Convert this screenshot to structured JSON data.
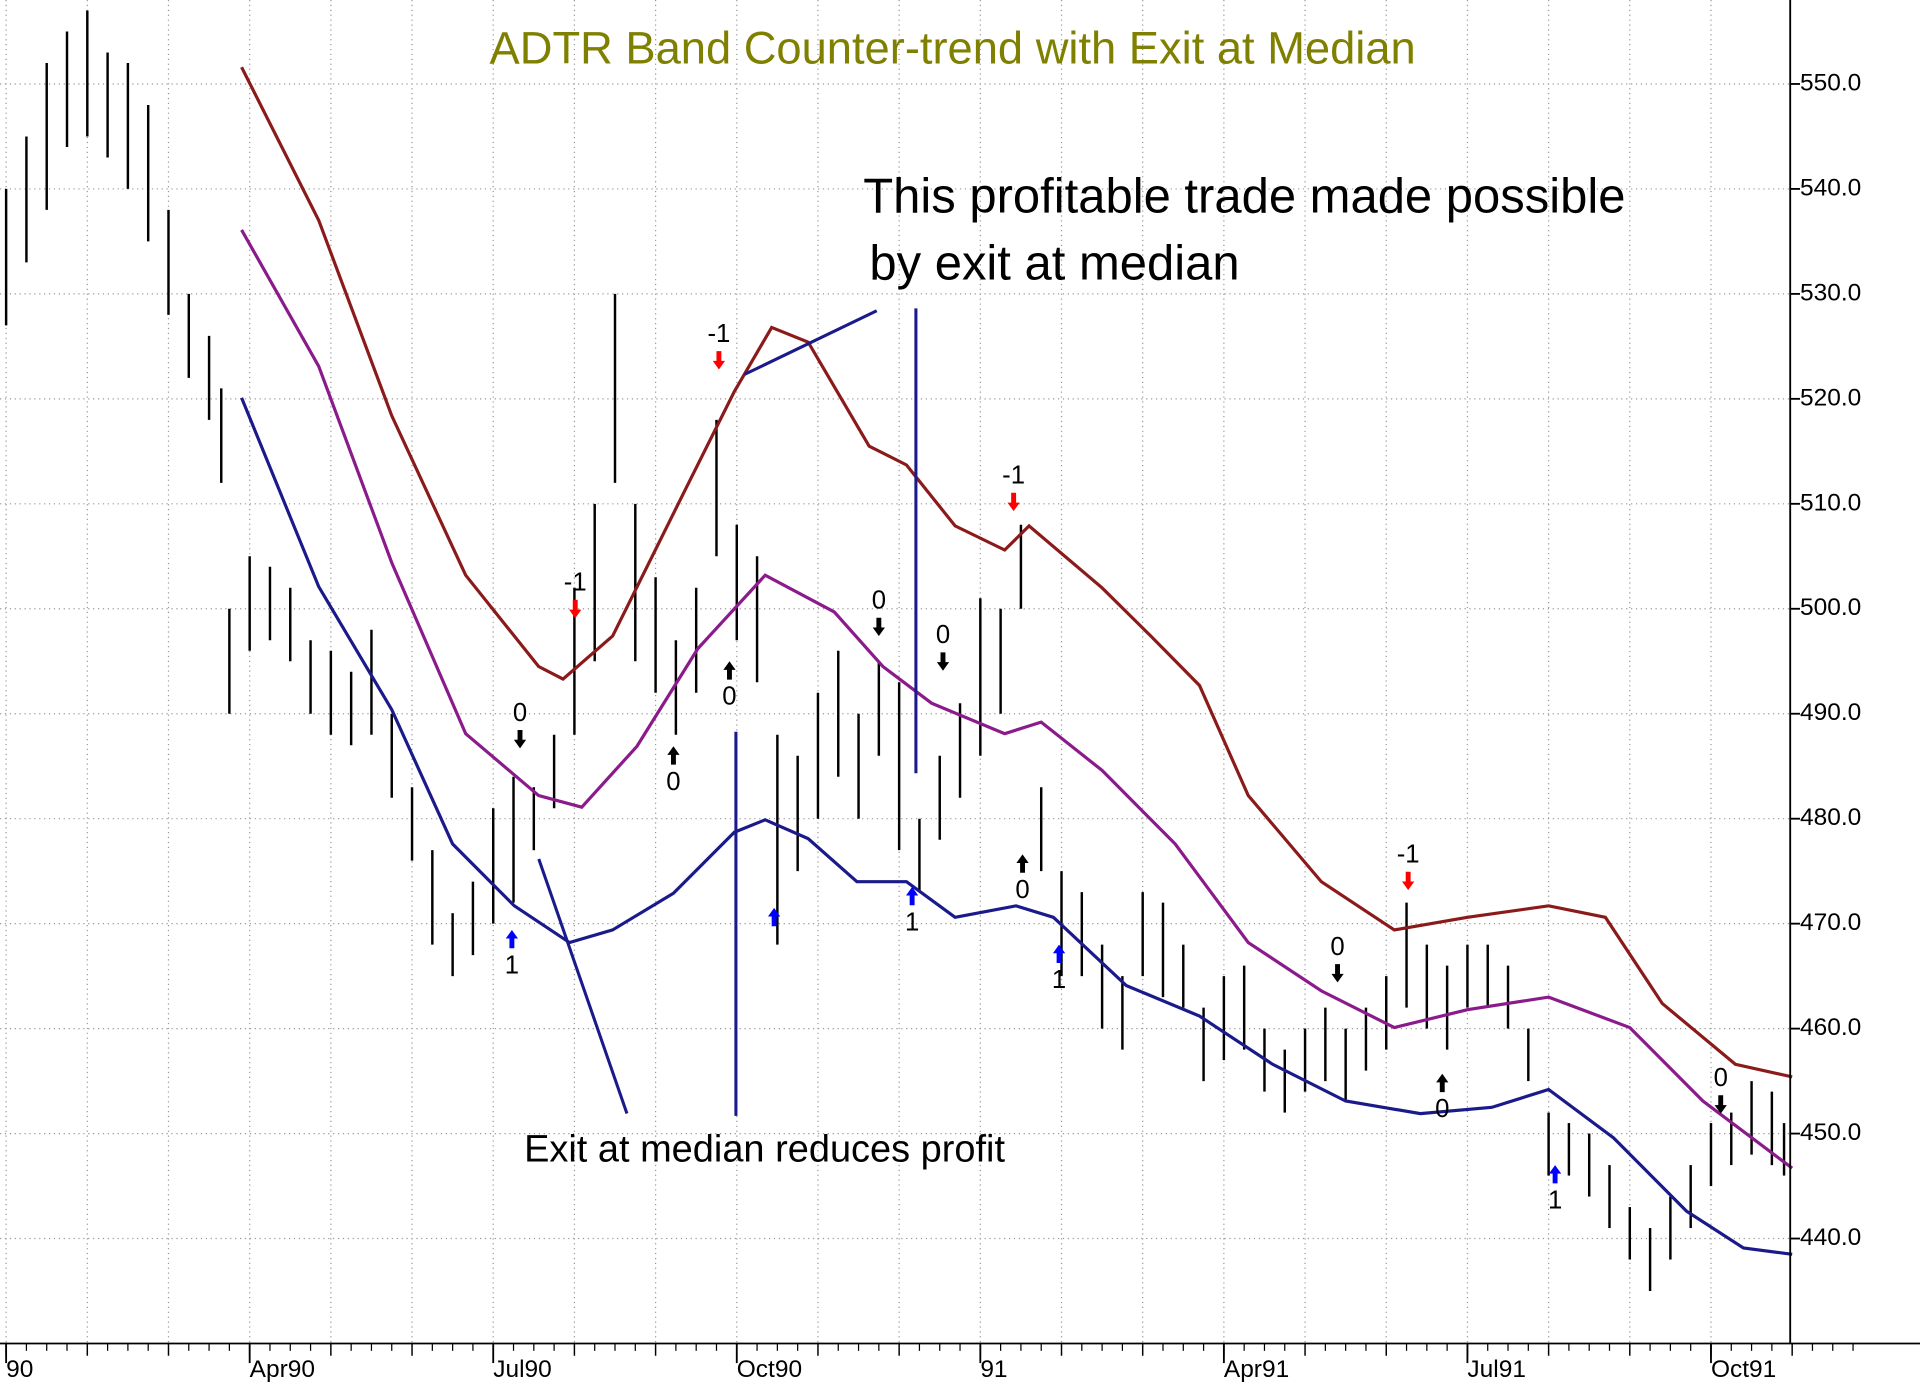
{
  "chart_data": {
    "type": "hilo",
    "title": "ADTR Band Counter-trend with Exit at Median",
    "title_color": "#808000",
    "annotations": [
      "This profitable trade made possible",
      "by exit at median",
      "Exit at median reduces profit"
    ],
    "xlim": [
      0,
      22
    ],
    "xticks": [
      {
        "value": 0,
        "label": "90"
      },
      {
        "value": 3,
        "label": "Apr90"
      },
      {
        "value": 6,
        "label": "Jul90"
      },
      {
        "value": 9,
        "label": "Oct90"
      },
      {
        "value": 12,
        "label": "91"
      },
      {
        "value": 15,
        "label": "Apr91"
      },
      {
        "value": 18,
        "label": "Jul91"
      },
      {
        "value": 21,
        "label": "Oct91"
      }
    ],
    "ylim": [
      430,
      558
    ],
    "yticks": [
      {
        "value": 440,
        "label": "440.0"
      },
      {
        "value": 450,
        "label": "450.0"
      },
      {
        "value": 460,
        "label": "460.0"
      },
      {
        "value": 470,
        "label": "470.0"
      },
      {
        "value": 480,
        "label": "480.0"
      },
      {
        "value": 490,
        "label": "490.0"
      },
      {
        "value": 500,
        "label": "500.0"
      },
      {
        "value": 510,
        "label": "510.0"
      },
      {
        "value": 520,
        "label": "520.0"
      },
      {
        "value": 530,
        "label": "530.0"
      },
      {
        "value": 540,
        "label": "540.0"
      },
      {
        "value": 550,
        "label": "550.0"
      }
    ],
    "y_axis_side": "right",
    "grid": true,
    "bar_color": "#000000",
    "x": [
      0,
      0.25,
      0.5,
      0.75,
      1,
      1.25,
      1.5,
      1.75,
      2,
      2.25,
      2.5,
      2.65,
      2.75,
      3,
      3.25,
      3.5,
      3.75,
      4,
      4.25,
      4.5,
      4.75,
      5,
      5.25,
      5.5,
      5.75,
      6,
      6.25,
      6.5,
      6.75,
      7,
      7.25,
      7.5,
      7.75,
      8,
      8.25,
      8.5,
      8.75,
      9,
      9.25,
      9.5,
      9.75,
      10,
      10.25,
      10.5,
      10.75,
      11,
      11.25,
      11.5,
      11.75,
      12,
      12.25,
      12.5,
      12.75,
      13,
      13.25,
      13.5,
      13.75,
      14,
      14.25,
      14.5,
      14.75,
      15,
      15.25,
      15.5,
      15.75,
      16,
      16.25,
      16.5,
      16.75,
      17,
      17.25,
      17.5,
      17.75,
      18,
      18.25,
      18.5,
      18.75,
      19,
      19.25,
      19.5,
      19.75,
      20,
      20.25,
      20.5,
      20.75,
      21,
      21.25,
      21.5,
      21.75,
      21.9
    ],
    "high": [
      540,
      545,
      552,
      555,
      557,
      553,
      552,
      548,
      538,
      530,
      526,
      521,
      500,
      505,
      504,
      502,
      497,
      496,
      494,
      498,
      490,
      483,
      477,
      471,
      474,
      481,
      484,
      483,
      488,
      502,
      510,
      530,
      510,
      503,
      497,
      502,
      518,
      508,
      505,
      488,
      486,
      492,
      496,
      490,
      495,
      493,
      480,
      486,
      491,
      501,
      500,
      508,
      483,
      475,
      473,
      468,
      465,
      473,
      472,
      468,
      462,
      465,
      466,
      460,
      458,
      460,
      462,
      460,
      462,
      465,
      472,
      468,
      466,
      468,
      468,
      466,
      460,
      452,
      451,
      450,
      447,
      443,
      441,
      444,
      447,
      451,
      452,
      455,
      454,
      451
    ],
    "low": [
      527,
      533,
      538,
      544,
      545,
      543,
      540,
      535,
      528,
      522,
      518,
      512,
      490,
      496,
      497,
      495,
      490,
      488,
      487,
      488,
      482,
      476,
      468,
      465,
      467,
      470,
      472,
      477,
      481,
      488,
      495,
      512,
      495,
      492,
      488,
      492,
      505,
      497,
      493,
      468,
      475,
      480,
      484,
      480,
      486,
      477,
      473,
      478,
      482,
      486,
      490,
      500,
      475,
      465,
      465,
      460,
      458,
      465,
      463,
      462,
      455,
      457,
      458,
      454,
      452,
      454,
      455,
      453,
      456,
      458,
      462,
      460,
      458,
      462,
      462,
      460,
      455,
      446,
      446,
      444,
      441,
      438,
      435,
      438,
      441,
      445,
      447,
      448,
      447,
      446
    ],
    "bands": [
      {
        "color": "#8b1a1a",
        "x": [
          2.9,
          3.85,
          4.75,
          5.66,
          6.56,
          6.86,
          7.47,
          8.37,
          8.97,
          9.43,
          9.88,
          10.63,
          11.09,
          11.69,
          12.3,
          12.6,
          13.5,
          14.1,
          14.7,
          15.3,
          16.2,
          17.1,
          18.0,
          19.0,
          19.7,
          20.4,
          21.3,
          22
        ],
        "values": [
          551.6,
          537,
          518.4,
          503.2,
          494.5,
          493.3,
          497.4,
          511.4,
          520.7,
          526.8,
          525.4,
          515.5,
          513.7,
          507.9,
          505.6,
          507.9,
          502,
          497.4,
          492.7,
          482.2,
          474,
          469.4,
          470.6,
          471.7,
          470.6,
          462.4,
          456.6,
          455.4
        ]
      },
      {
        "color": "#8b1a8b",
        "x": [
          2.9,
          3.85,
          4.75,
          5.66,
          6.56,
          7.09,
          7.77,
          8.52,
          9.35,
          10.2,
          10.8,
          11.4,
          12.3,
          12.75,
          13.5,
          14.4,
          15.3,
          16.2,
          17.1,
          18.0,
          19.0,
          20.0,
          20.9,
          22
        ],
        "values": [
          536.1,
          523.1,
          504.4,
          488.1,
          482.2,
          481.1,
          486.9,
          496.2,
          503.2,
          499.7,
          494.5,
          491,
          488.1,
          489.2,
          484.6,
          477.6,
          468.2,
          463.6,
          460.1,
          461.8,
          463,
          460.1,
          453.1,
          446.7
        ]
      },
      {
        "color": "#1a1a8b",
        "x": [
          2.9,
          3.85,
          4.75,
          5.5,
          6.26,
          6.94,
          7.47,
          8.22,
          8.97,
          9.35,
          9.88,
          10.48,
          11.09,
          11.69,
          12.44,
          12.9,
          13.8,
          14.7,
          15.6,
          16.5,
          17.42,
          18.3,
          19.0,
          19.8,
          20.7,
          21.4,
          22
        ],
        "values": [
          520.1,
          502.1,
          490.4,
          477.6,
          471.7,
          468.2,
          469.4,
          472.9,
          478.7,
          479.9,
          478.1,
          474,
          474,
          470.6,
          471.7,
          470.6,
          464.1,
          461.2,
          456.6,
          453.1,
          451.9,
          452.5,
          454.2,
          449.6,
          442.6,
          439.1,
          438.5
        ]
      }
    ],
    "signals": [
      {
        "x": 6.33,
        "value": 486.7,
        "label": "0",
        "direction": "down",
        "color": "#000000"
      },
      {
        "x": 6.23,
        "value": 469.4,
        "label": "1",
        "direction": "up",
        "color": "#0000ff"
      },
      {
        "x": 7.01,
        "value": 499.1,
        "label": "-1",
        "direction": "down",
        "color": "#ff0000"
      },
      {
        "x": 8.22,
        "value": 486.9,
        "label": "0",
        "direction": "up",
        "color": "#000000"
      },
      {
        "x": 8.78,
        "value": 522.8,
        "label": "-1",
        "direction": "down",
        "color": "#ff0000"
      },
      {
        "x": 8.91,
        "value": 495,
        "label": "0",
        "direction": "up",
        "color": "#000000"
      },
      {
        "x": 9.46,
        "value": 471.5,
        "direction": "up",
        "color": "#0000ff"
      },
      {
        "x": 10.75,
        "value": 497.4,
        "label": "0",
        "direction": "down",
        "color": "#000000"
      },
      {
        "x": 11.16,
        "value": 473.5,
        "label": "1",
        "direction": "up",
        "color": "#0000ff"
      },
      {
        "x": 11.54,
        "value": 494.1,
        "label": "0",
        "direction": "down",
        "color": "#000000"
      },
      {
        "x": 12.41,
        "value": 509.3,
        "label": "-1",
        "direction": "down",
        "color": "#ff0000"
      },
      {
        "x": 12.52,
        "value": 476.6,
        "label": "0",
        "direction": "up",
        "color": "#000000"
      },
      {
        "x": 12.97,
        "value": 468,
        "label": "1",
        "direction": "up",
        "color": "#0000ff"
      },
      {
        "x": 16.4,
        "value": 464.4,
        "label": "0",
        "direction": "down",
        "color": "#000000"
      },
      {
        "x": 17.27,
        "value": 473.2,
        "label": "-1",
        "direction": "down",
        "color": "#ff0000"
      },
      {
        "x": 17.69,
        "value": 455.7,
        "label": "0",
        "direction": "up",
        "color": "#000000"
      },
      {
        "x": 19.08,
        "value": 447,
        "label": "1",
        "direction": "up",
        "color": "#0000ff"
      },
      {
        "x": 21.12,
        "value": 451.9,
        "label": "0",
        "direction": "down",
        "color": "#000000"
      }
    ]
  }
}
